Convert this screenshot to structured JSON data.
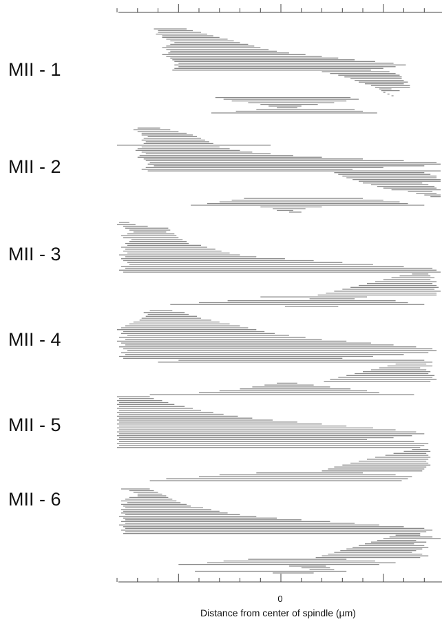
{
  "chart_data": {
    "type": "bar",
    "orientation": "horizontal-segments",
    "title": "",
    "xlabel": "Distance from center of spindle (µm)",
    "ylabel": "",
    "x_tick_labels": [
      {
        "value": 0,
        "label": "0"
      }
    ],
    "xlim": [
      -8,
      8
    ],
    "line_color": "#8a8a8a",
    "grid": false,
    "series": [
      {
        "name": "MII - 1",
        "segments": [
          [
            -6.2,
            -4.6
          ],
          [
            -6.0,
            -4.3
          ],
          [
            -6.0,
            -3.9
          ],
          [
            -6.1,
            -3.6
          ],
          [
            -5.8,
            -3.3
          ],
          [
            -5.8,
            -3.0
          ],
          [
            -5.6,
            -2.6
          ],
          [
            -5.4,
            -2.3
          ],
          [
            -5.2,
            -2.0
          ],
          [
            -5.4,
            -1.6
          ],
          [
            -5.6,
            -1.3
          ],
          [
            -5.8,
            -1.0
          ],
          [
            -5.6,
            -0.6
          ],
          [
            -5.4,
            -0.2
          ],
          [
            -5.5,
            0.4
          ],
          [
            -5.8,
            1.2
          ],
          [
            -5.6,
            2.0
          ],
          [
            -5.4,
            2.8
          ],
          [
            -5.3,
            3.6
          ],
          [
            -5.2,
            4.6
          ],
          [
            -5.0,
            5.5
          ],
          [
            -5.2,
            6.1
          ],
          [
            -5.0,
            5.6
          ],
          [
            -5.2,
            5.0
          ],
          [
            -5.3,
            4.4
          ],
          [
            2.0,
            5.3
          ],
          [
            2.4,
            5.6
          ],
          [
            2.8,
            5.8
          ],
          [
            3.1,
            5.9
          ],
          [
            3.4,
            5.9
          ],
          [
            3.6,
            6.0
          ],
          [
            3.8,
            6.2
          ],
          [
            4.1,
            6.0
          ],
          [
            4.4,
            6.3
          ],
          [
            4.6,
            6.3
          ],
          [
            4.8,
            5.4
          ],
          [
            4.9,
            5.8
          ],
          [
            5.0,
            5.1
          ],
          [
            5.2,
            5.3
          ],
          [
            5.5,
            5.4
          ],
          [
            -3.2,
            3.4
          ],
          [
            -2.8,
            3.8
          ],
          [
            -2.4,
            3.2
          ],
          [
            -1.6,
            2.6
          ],
          [
            -1.0,
            1.8
          ],
          [
            -0.6,
            1.0
          ],
          [
            -0.2,
            0.8
          ],
          [
            -1.2,
            3.6
          ],
          [
            -2.2,
            4.0
          ],
          [
            -3.4,
            4.7
          ]
        ]
      },
      {
        "name": "MII - 2",
        "segments": [
          [
            -7.0,
            -5.9
          ],
          [
            -7.2,
            -5.4
          ],
          [
            -7.0,
            -5.0
          ],
          [
            -6.8,
            -4.6
          ],
          [
            -6.8,
            -4.3
          ],
          [
            -6.5,
            -4.1
          ],
          [
            -6.7,
            -3.9
          ],
          [
            -6.8,
            -3.7
          ],
          [
            -6.6,
            -3.5
          ],
          [
            -6.7,
            -3.3
          ],
          [
            -8.0,
            -0.5
          ],
          [
            -6.8,
            -3.0
          ],
          [
            -7.0,
            -2.5
          ],
          [
            -7.1,
            -2.0
          ],
          [
            -6.8,
            -1.4
          ],
          [
            -6.6,
            -0.5
          ],
          [
            -6.9,
            0.6
          ],
          [
            -7.0,
            2.0
          ],
          [
            -6.7,
            4.0
          ],
          [
            -6.6,
            6.0
          ],
          [
            -6.4,
            7.6
          ],
          [
            -6.5,
            7.9
          ],
          [
            -6.2,
            7.0
          ],
          [
            -6.6,
            5.0
          ],
          [
            -6.8,
            3.5
          ],
          [
            -6.5,
            8.0
          ],
          [
            2.6,
            7.0
          ],
          [
            2.8,
            7.3
          ],
          [
            3.0,
            7.6
          ],
          [
            3.2,
            7.6
          ],
          [
            3.5,
            7.8
          ],
          [
            3.8,
            7.9
          ],
          [
            4.0,
            6.9
          ],
          [
            4.4,
            7.2
          ],
          [
            4.7,
            7.5
          ],
          [
            5.0,
            7.6
          ],
          [
            5.4,
            7.8
          ],
          [
            6.2,
            7.4
          ],
          [
            6.6,
            7.6
          ],
          [
            7.0,
            7.8
          ],
          [
            7.3,
            7.9
          ],
          [
            -1.8,
            4.0
          ],
          [
            -2.4,
            5.0
          ],
          [
            -3.0,
            5.8
          ],
          [
            -3.6,
            6.2
          ],
          [
            -4.4,
            7.0
          ],
          [
            -1.0,
            2.0
          ],
          [
            -0.4,
            1.2
          ],
          [
            -0.2,
            0.6
          ],
          [
            0.4,
            1.0
          ]
        ]
      },
      {
        "name": "MII - 3",
        "segments": [
          [
            -7.9,
            -7.4
          ],
          [
            -8.0,
            -7.1
          ],
          [
            -7.7,
            -6.5
          ],
          [
            -7.6,
            -5.5
          ],
          [
            -7.4,
            -5.4
          ],
          [
            -7.2,
            -5.6
          ],
          [
            -7.5,
            -5.2
          ],
          [
            -7.8,
            -5.1
          ],
          [
            -7.7,
            -5.0
          ],
          [
            -7.3,
            -4.8
          ],
          [
            -7.4,
            -4.6
          ],
          [
            -7.6,
            -4.5
          ],
          [
            -7.5,
            -3.9
          ],
          [
            -7.8,
            -3.6
          ],
          [
            -7.6,
            -3.2
          ],
          [
            -7.7,
            -2.9
          ],
          [
            -7.5,
            -2.5
          ],
          [
            -7.9,
            -2.0
          ],
          [
            -7.6,
            -1.2
          ],
          [
            -7.8,
            0.2
          ],
          [
            -7.7,
            1.6
          ],
          [
            -7.5,
            3.0
          ],
          [
            -7.4,
            4.5
          ],
          [
            -7.8,
            6.0
          ],
          [
            -7.6,
            7.4
          ],
          [
            -7.9,
            7.6
          ],
          [
            -7.7,
            7.8
          ],
          [
            6.4,
            7.2
          ],
          [
            5.8,
            7.3
          ],
          [
            5.4,
            7.5
          ],
          [
            5.0,
            7.3
          ],
          [
            4.6,
            7.6
          ],
          [
            4.2,
            7.4
          ],
          [
            3.8,
            7.6
          ],
          [
            3.4,
            7.7
          ],
          [
            3.0,
            7.5
          ],
          [
            2.6,
            7.8
          ],
          [
            2.2,
            7.6
          ],
          [
            1.8,
            7.6
          ],
          [
            -1.0,
            4.2
          ],
          [
            1.4,
            3.6
          ],
          [
            -2.6,
            5.6
          ],
          [
            -4.0,
            6.2
          ],
          [
            -5.4,
            7.0
          ],
          [
            0.2,
            2.8
          ]
        ]
      },
      {
        "name": "MII - 4",
        "segments": [
          [
            -6.4,
            -5.3
          ],
          [
            -6.7,
            -4.7
          ],
          [
            -6.5,
            -4.5
          ],
          [
            -6.6,
            -4.1
          ],
          [
            -6.8,
            -3.9
          ],
          [
            -6.9,
            -3.4
          ],
          [
            -7.2,
            -3.0
          ],
          [
            -7.4,
            -2.5
          ],
          [
            -7.6,
            -2.0
          ],
          [
            -7.8,
            -1.6
          ],
          [
            -8.0,
            -1.2
          ],
          [
            -7.7,
            -0.8
          ],
          [
            -7.8,
            -0.3
          ],
          [
            -7.5,
            0.4
          ],
          [
            -7.9,
            1.2
          ],
          [
            -7.6,
            2.0
          ],
          [
            -8.0,
            3.2
          ],
          [
            -7.8,
            4.4
          ],
          [
            -7.6,
            5.5
          ],
          [
            -7.9,
            6.6
          ],
          [
            -7.7,
            7.4
          ],
          [
            -7.5,
            7.6
          ],
          [
            -7.8,
            7.2
          ],
          [
            -7.6,
            6.0
          ],
          [
            -7.9,
            4.5
          ],
          [
            -7.7,
            3.0
          ],
          [
            -5.0,
            7.0
          ],
          [
            -6.0,
            7.4
          ],
          [
            5.6,
            7.1
          ],
          [
            5.2,
            7.4
          ],
          [
            4.8,
            6.8
          ],
          [
            4.4,
            7.1
          ],
          [
            4.0,
            7.3
          ],
          [
            3.6,
            7.2
          ],
          [
            3.2,
            7.5
          ],
          [
            2.8,
            7.4
          ],
          [
            2.4,
            7.6
          ],
          [
            2.1,
            7.3
          ],
          [
            -0.2,
            0.8
          ],
          [
            -0.8,
            1.6
          ],
          [
            -1.4,
            2.4
          ],
          [
            -2.0,
            3.4
          ],
          [
            -3.0,
            4.2
          ],
          [
            -4.0,
            4.8
          ],
          [
            -6.4,
            6.5
          ]
        ]
      },
      {
        "name": "MII - 5",
        "segments": [
          [
            -8.0,
            -6.4
          ],
          [
            -7.9,
            -6.2
          ],
          [
            -8.0,
            -5.8
          ],
          [
            -7.9,
            -5.5
          ],
          [
            -8.0,
            -5.2
          ],
          [
            -7.9,
            -4.7
          ],
          [
            -8.0,
            -4.3
          ],
          [
            -7.9,
            -3.9
          ],
          [
            -8.0,
            -3.3
          ],
          [
            -7.9,
            -2.8
          ],
          [
            -8.0,
            -2.1
          ],
          [
            -7.9,
            -1.4
          ],
          [
            -8.0,
            -0.4
          ],
          [
            -7.9,
            0.8
          ],
          [
            -8.0,
            2.0
          ],
          [
            -7.9,
            3.2
          ],
          [
            -8.0,
            4.5
          ],
          [
            -7.9,
            5.6
          ],
          [
            -8.0,
            6.6
          ],
          [
            -7.9,
            7.0
          ],
          [
            -8.0,
            6.4
          ],
          [
            -7.9,
            5.5
          ],
          [
            -8.0,
            4.2
          ],
          [
            -7.9,
            6.5
          ],
          [
            -8.0,
            7.2
          ],
          [
            -7.9,
            7.0
          ],
          [
            -8.0,
            6.8
          ],
          [
            6.4,
            7.2
          ],
          [
            6.0,
            7.3
          ],
          [
            5.5,
            7.1
          ],
          [
            5.1,
            7.2
          ],
          [
            4.6,
            7.3
          ],
          [
            4.2,
            7.2
          ],
          [
            3.8,
            7.1
          ],
          [
            3.4,
            7.2
          ],
          [
            3.0,
            7.3
          ],
          [
            2.6,
            7.1
          ],
          [
            2.3,
            7.0
          ],
          [
            2.0,
            6.9
          ],
          [
            -1.2,
            4.0
          ],
          [
            -3.0,
            5.6
          ],
          [
            -4.0,
            6.4
          ],
          [
            -5.6,
            6.2
          ],
          [
            -6.4,
            5.9
          ]
        ]
      },
      {
        "name": "MII - 6",
        "segments": [
          [
            -7.8,
            -6.4
          ],
          [
            -7.4,
            -6.2
          ],
          [
            -7.2,
            -6.0
          ],
          [
            -7.0,
            -5.8
          ],
          [
            -7.0,
            -5.6
          ],
          [
            -7.4,
            -5.5
          ],
          [
            -7.6,
            -5.3
          ],
          [
            -7.8,
            -5.1
          ],
          [
            -7.5,
            -4.9
          ],
          [
            -7.8,
            -4.6
          ],
          [
            -7.7,
            -4.4
          ],
          [
            -7.6,
            -3.8
          ],
          [
            -7.8,
            -3.4
          ],
          [
            -7.7,
            -3.0
          ],
          [
            -7.8,
            -2.6
          ],
          [
            -7.6,
            -2.0
          ],
          [
            -7.9,
            -1.2
          ],
          [
            -7.7,
            -0.2
          ],
          [
            -7.6,
            1.0
          ],
          [
            -7.8,
            2.4
          ],
          [
            -7.6,
            3.6
          ],
          [
            -7.9,
            4.8
          ],
          [
            -7.7,
            6.0
          ],
          [
            -7.6,
            7.0
          ],
          [
            -7.8,
            7.4
          ],
          [
            -7.6,
            7.1
          ],
          [
            -7.7,
            6.8
          ],
          [
            5.6,
            6.8
          ],
          [
            5.3,
            7.4
          ],
          [
            5.0,
            7.8
          ],
          [
            4.7,
            6.6
          ],
          [
            4.4,
            7.1
          ],
          [
            4.1,
            6.5
          ],
          [
            3.8,
            7.0
          ],
          [
            3.5,
            7.2
          ],
          [
            3.2,
            6.9
          ],
          [
            2.9,
            6.6
          ],
          [
            2.6,
            6.4
          ],
          [
            2.3,
            6.9
          ],
          [
            2.0,
            7.2
          ],
          [
            1.7,
            6.8
          ],
          [
            -1.6,
            3.2
          ],
          [
            -2.8,
            4.6
          ],
          [
            -3.6,
            5.6
          ],
          [
            -5.0,
            4.8
          ],
          [
            0.4,
            2.2
          ],
          [
            1.0,
            2.4
          ],
          [
            1.4,
            2.6
          ],
          [
            -4.2,
            3.2
          ],
          [
            -0.4,
            1.6
          ]
        ]
      }
    ]
  }
}
